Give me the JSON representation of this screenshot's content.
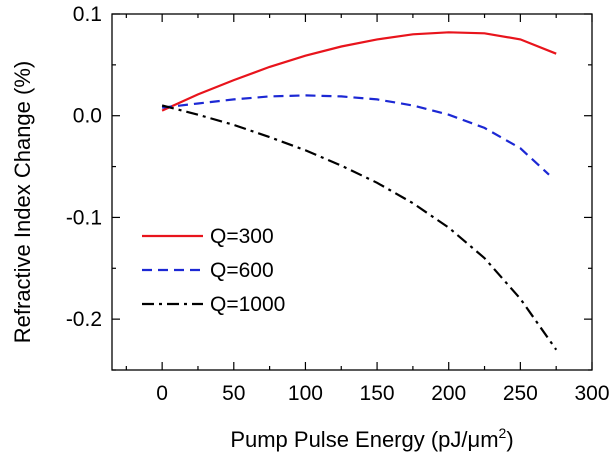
{
  "chart_data": {
    "type": "line",
    "title": "",
    "xlabel": "Pump Pulse Energy (pJ/μm",
    "xlabel_sup": "2",
    "xlabel_close": ")",
    "ylabel": "Refractive Index Change (%)",
    "xlim": [
      -35,
      300
    ],
    "ylim": [
      -0.25,
      0.1
    ],
    "xticks": [
      0,
      50,
      100,
      150,
      200,
      250,
      300
    ],
    "xtick_labels": [
      "0",
      "50",
      "100",
      "150",
      "200",
      "250",
      "300"
    ],
    "yticks": [
      0.1,
      0.0,
      -0.1,
      -0.2
    ],
    "ytick_labels": [
      "0.1",
      "0.0",
      "-0.1",
      "-0.2"
    ],
    "grid": false,
    "legend_position": "lower-left",
    "series": [
      {
        "name": "Q=300",
        "color": "#e8141c",
        "style": "solid",
        "x": [
          0,
          25,
          50,
          75,
          100,
          125,
          150,
          175,
          200,
          225,
          250,
          275
        ],
        "y": [
          0.005,
          0.021,
          0.035,
          0.048,
          0.059,
          0.068,
          0.075,
          0.08,
          0.082,
          0.081,
          0.075,
          0.061
        ]
      },
      {
        "name": "Q=600",
        "color": "#1c28d4",
        "style": "dashed",
        "x": [
          0,
          25,
          50,
          75,
          100,
          125,
          150,
          175,
          200,
          225,
          250,
          270
        ],
        "y": [
          0.008,
          0.012,
          0.016,
          0.019,
          0.02,
          0.019,
          0.016,
          0.01,
          0.001,
          -0.012,
          -0.032,
          -0.058
        ]
      },
      {
        "name": "Q=1000",
        "color": "#000000",
        "style": "dashdot",
        "x": [
          0,
          25,
          50,
          75,
          100,
          125,
          150,
          175,
          200,
          225,
          250,
          275
        ],
        "y": [
          0.01,
          0.001,
          -0.009,
          -0.021,
          -0.034,
          -0.049,
          -0.066,
          -0.086,
          -0.11,
          -0.14,
          -0.18,
          -0.23
        ]
      }
    ]
  }
}
